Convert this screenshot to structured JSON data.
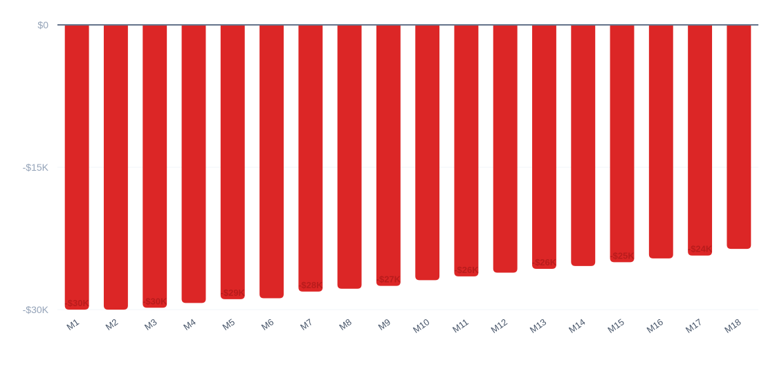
{
  "chart_data": {
    "type": "bar",
    "categories": [
      "M1",
      "M2",
      "M3",
      "M4",
      "M5",
      "M6",
      "M7",
      "M8",
      "M9",
      "M10",
      "M11",
      "M12",
      "M13",
      "M14",
      "M15",
      "M16",
      "M17",
      "M18"
    ],
    "values": [
      -30000,
      -30000,
      -29800,
      -29300,
      -28900,
      -28800,
      -28100,
      -27800,
      -27500,
      -26900,
      -26500,
      -26100,
      -25700,
      -25400,
      -25000,
      -24600,
      -24300,
      -23600
    ],
    "data_labels": [
      "-$30K",
      "",
      "-$30K",
      "",
      "-$29K",
      "",
      "-$28K",
      "",
      "-$27K",
      "",
      "-$26K",
      "",
      "-$26K",
      "",
      "-$25K",
      "",
      "-$24K",
      ""
    ],
    "y_ticks": [
      {
        "value": 0,
        "label": "$0"
      },
      {
        "value": -15000,
        "label": "-$15K"
      },
      {
        "value": -30000,
        "label": "-$30K"
      }
    ],
    "ylim": [
      -30000,
      0
    ],
    "title": "",
    "xlabel": "",
    "ylabel": "",
    "grid": true,
    "colors": {
      "bar": "#dc2626",
      "label": "#b91c1c",
      "baseline": "#64748b",
      "grid": "#f1f5f9",
      "tick": "#94a3b8",
      "xtick": "#475569"
    }
  }
}
